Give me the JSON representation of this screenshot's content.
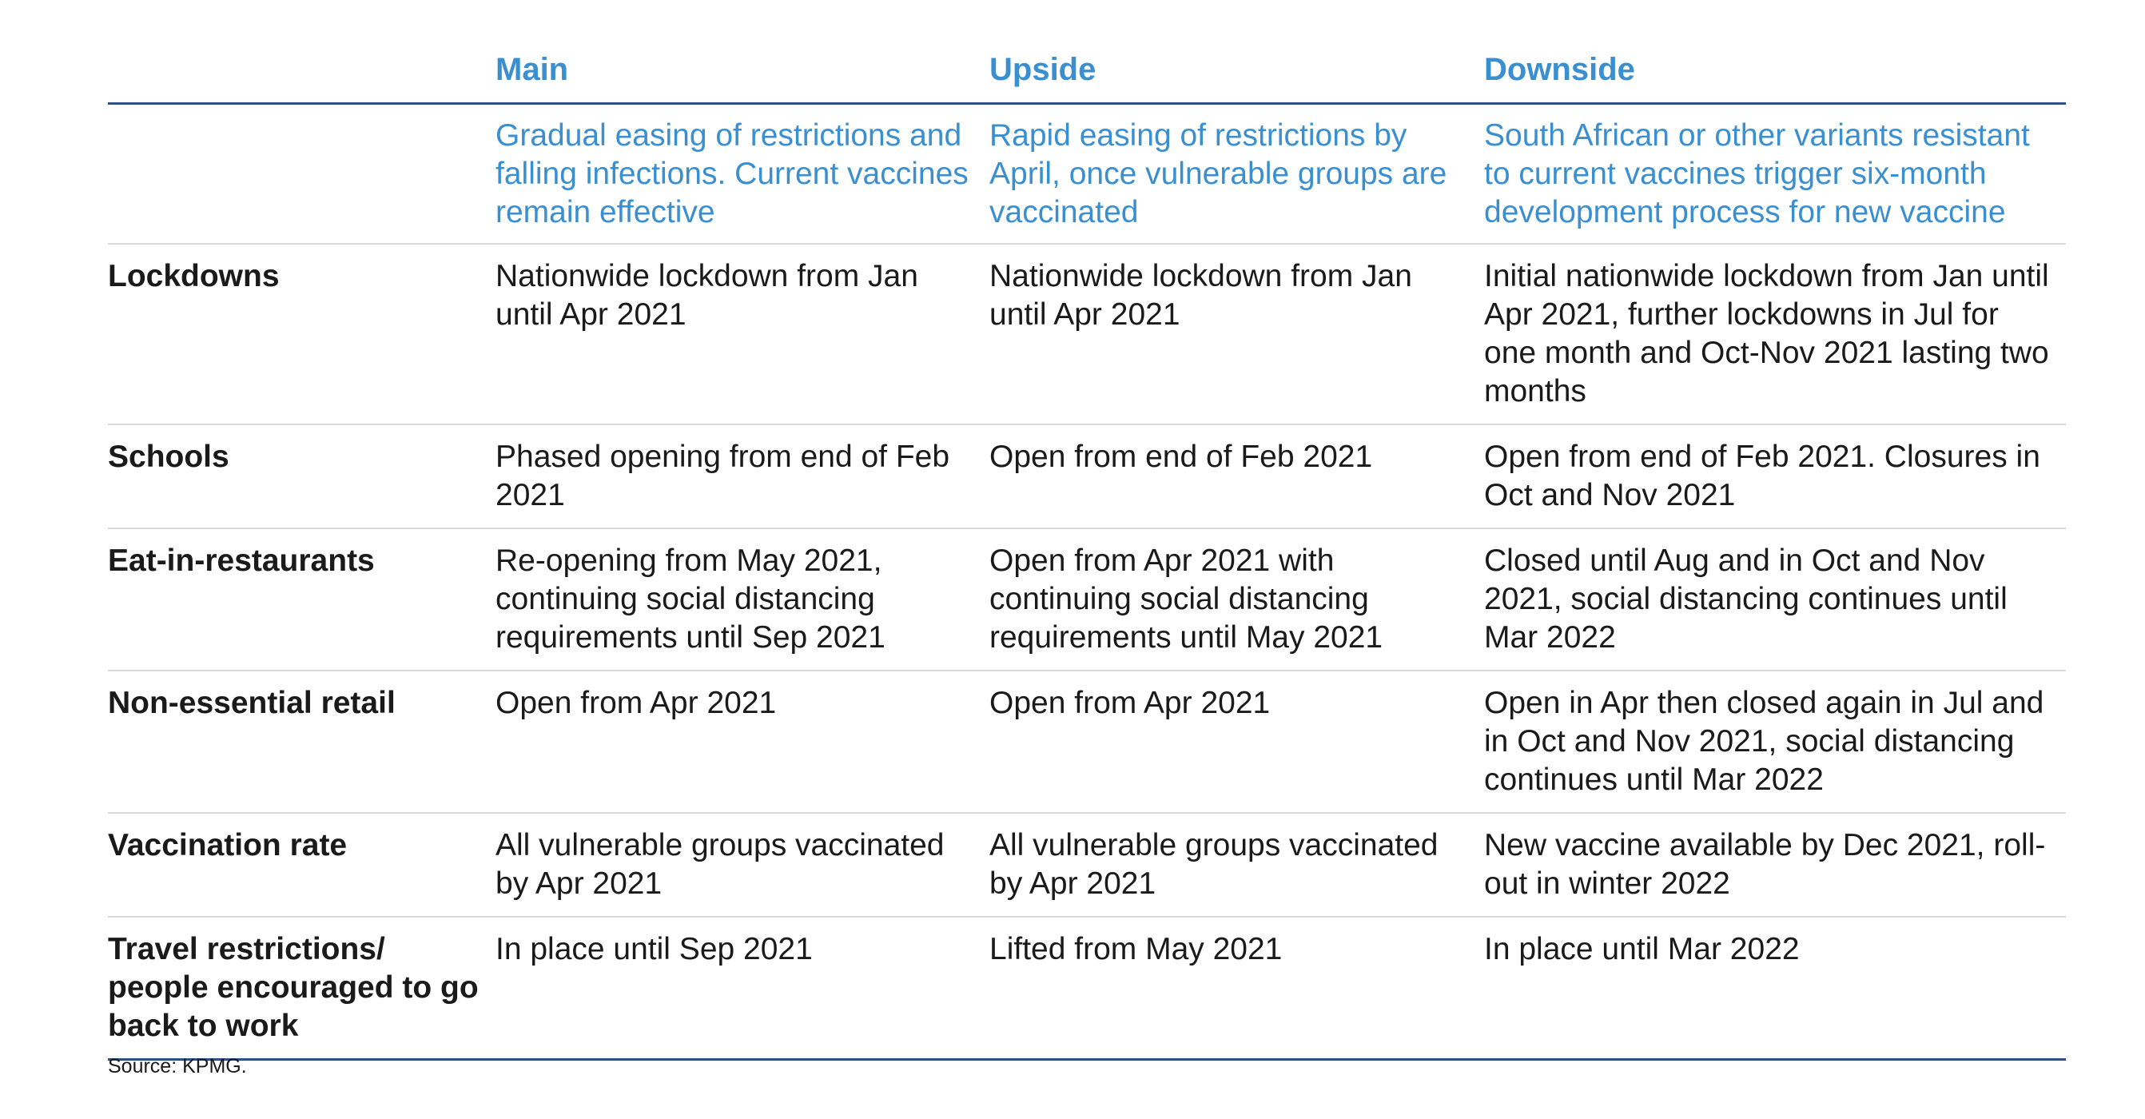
{
  "table": {
    "columns": [
      "",
      "Main",
      "Upside",
      "Downside"
    ],
    "scenarios": [
      "Gradual easing of restrictions and falling infections. Current vaccines remain effective",
      "Rapid easing of restrictions by April, once vulnerable groups are vaccinated",
      "South African or other variants resistant to current vaccines trigger six-month development process for new vaccine"
    ],
    "rows": [
      {
        "label": "Lockdowns",
        "main": "Nationwide lockdown from Jan until Apr 2021",
        "upside": "Nationwide lockdown from Jan until Apr 2021",
        "downside": "Initial nationwide lockdown from Jan until Apr 2021, further lockdowns in Jul for one month and Oct-Nov 2021 lasting two months"
      },
      {
        "label": "Schools",
        "main": "Phased opening from end of Feb 2021",
        "upside": "Open from end of Feb 2021",
        "downside": "Open from end of Feb 2021. Closures in Oct and Nov 2021"
      },
      {
        "label": "Eat-in-restaurants",
        "main": "Re-opening from May 2021, continuing social distancing requirements until Sep 2021",
        "upside": "Open from Apr 2021 with continuing social distancing requirements until May 2021",
        "downside": "Closed until Aug and in Oct and Nov 2021, social distancing continues until Mar 2022"
      },
      {
        "label": "Non-essential retail",
        "main": "Open from Apr 2021",
        "upside": "Open from Apr 2021",
        "downside": "Open in Apr then closed again in Jul and in Oct and Nov 2021, social distancing continues until Mar 2022"
      },
      {
        "label": "Vaccination rate",
        "main": "All vulnerable groups vaccinated by Apr 2021",
        "upside": "All vulnerable groups vaccinated by Apr 2021",
        "downside": "New vaccine available by Dec 2021, roll-out in winter 2022"
      },
      {
        "label": "Travel restrictions/ people encouraged to go back to work",
        "main": "In place until Sep 2021",
        "upside": "Lifted from May 2021",
        "downside": "In place until Mar 2022"
      }
    ]
  },
  "source": "Source: KPMG.",
  "colors": {
    "header_text": "#3a8fd0",
    "rule_dark": "#2c4f86",
    "rule_light": "#d9d9d9",
    "body_text": "#1a1a1a"
  }
}
